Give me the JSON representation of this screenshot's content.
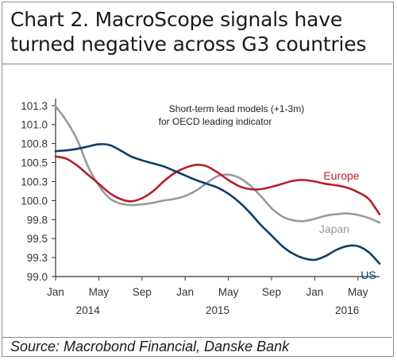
{
  "title": "Chart 2. MacroScope signals have turned negative across G3 countries",
  "source": "Source: Macrobond Financial, Danske Bank",
  "annotation": [
    "Short-term lead models (+1-3m)",
    "for OECD leading indicator"
  ],
  "colors": {
    "Europe": "#b5202a",
    "Japan": "#9a9a9a",
    "US": "#0f3d66"
  },
  "chart_data": {
    "type": "line",
    "title": "Chart 2. MacroScope signals have turned negative across G3 countries",
    "xlabel": "",
    "ylabel": "",
    "ylim": [
      99.0,
      101.3
    ],
    "yticks": [
      "101.3",
      "101.0",
      "100.8",
      "100.5",
      "100.3",
      "100.0",
      "99.8",
      "99.5",
      "99.3",
      "99.0"
    ],
    "ytick_values": [
      101.25,
      101.0,
      100.75,
      100.5,
      100.25,
      100.0,
      99.75,
      99.5,
      99.25,
      99.0
    ],
    "xlim": [
      "2014-01",
      "2016-07"
    ],
    "xtick_months": [
      "Jan",
      "May",
      "Sep",
      "Jan",
      "May",
      "Sep",
      "Jan",
      "May"
    ],
    "xtick_dates": [
      "2014-01",
      "2014-05",
      "2014-09",
      "2015-01",
      "2015-05",
      "2015-09",
      "2016-01",
      "2016-05"
    ],
    "xtick_years": [
      "2014",
      "2015",
      "2016"
    ],
    "xtick_year_dates": [
      "2014-04",
      "2015-04",
      "2016-04"
    ],
    "grid": false,
    "legend": "inline labels",
    "x": [
      "2014-01",
      "2014-02",
      "2014-03",
      "2014-04",
      "2014-05",
      "2014-06",
      "2014-07",
      "2014-08",
      "2014-09",
      "2014-10",
      "2014-11",
      "2014-12",
      "2015-01",
      "2015-02",
      "2015-03",
      "2015-04",
      "2015-05",
      "2015-06",
      "2015-07",
      "2015-08",
      "2015-09",
      "2015-10",
      "2015-11",
      "2015-12",
      "2016-01",
      "2016-02",
      "2016-03",
      "2016-04",
      "2016-05",
      "2016-06",
      "2016-07"
    ],
    "series": [
      {
        "name": "Europe",
        "values": [
          100.58,
          100.55,
          100.46,
          100.34,
          100.22,
          100.1,
          100.02,
          99.99,
          100.03,
          100.12,
          100.25,
          100.36,
          100.43,
          100.47,
          100.45,
          100.37,
          100.27,
          100.19,
          100.15,
          100.15,
          100.18,
          100.22,
          100.26,
          100.27,
          100.25,
          100.22,
          100.2,
          100.17,
          100.11,
          100.02,
          99.82
        ]
      },
      {
        "name": "Japan",
        "values": [
          101.24,
          101.05,
          100.8,
          100.45,
          100.2,
          100.03,
          99.96,
          99.94,
          99.95,
          99.97,
          100.0,
          100.02,
          100.06,
          100.13,
          100.23,
          100.32,
          100.34,
          100.3,
          100.2,
          100.06,
          99.9,
          99.79,
          99.74,
          99.73,
          99.76,
          99.8,
          99.82,
          99.83,
          99.81,
          99.77,
          99.71
        ]
      },
      {
        "name": "US",
        "values": [
          100.65,
          100.66,
          100.68,
          100.71,
          100.74,
          100.73,
          100.66,
          100.58,
          100.53,
          100.49,
          100.45,
          100.39,
          100.33,
          100.27,
          100.22,
          100.17,
          100.09,
          99.98,
          99.84,
          99.68,
          99.54,
          99.4,
          99.3,
          99.24,
          99.22,
          99.27,
          99.35,
          99.4,
          99.4,
          99.32,
          99.17
        ]
      }
    ]
  }
}
